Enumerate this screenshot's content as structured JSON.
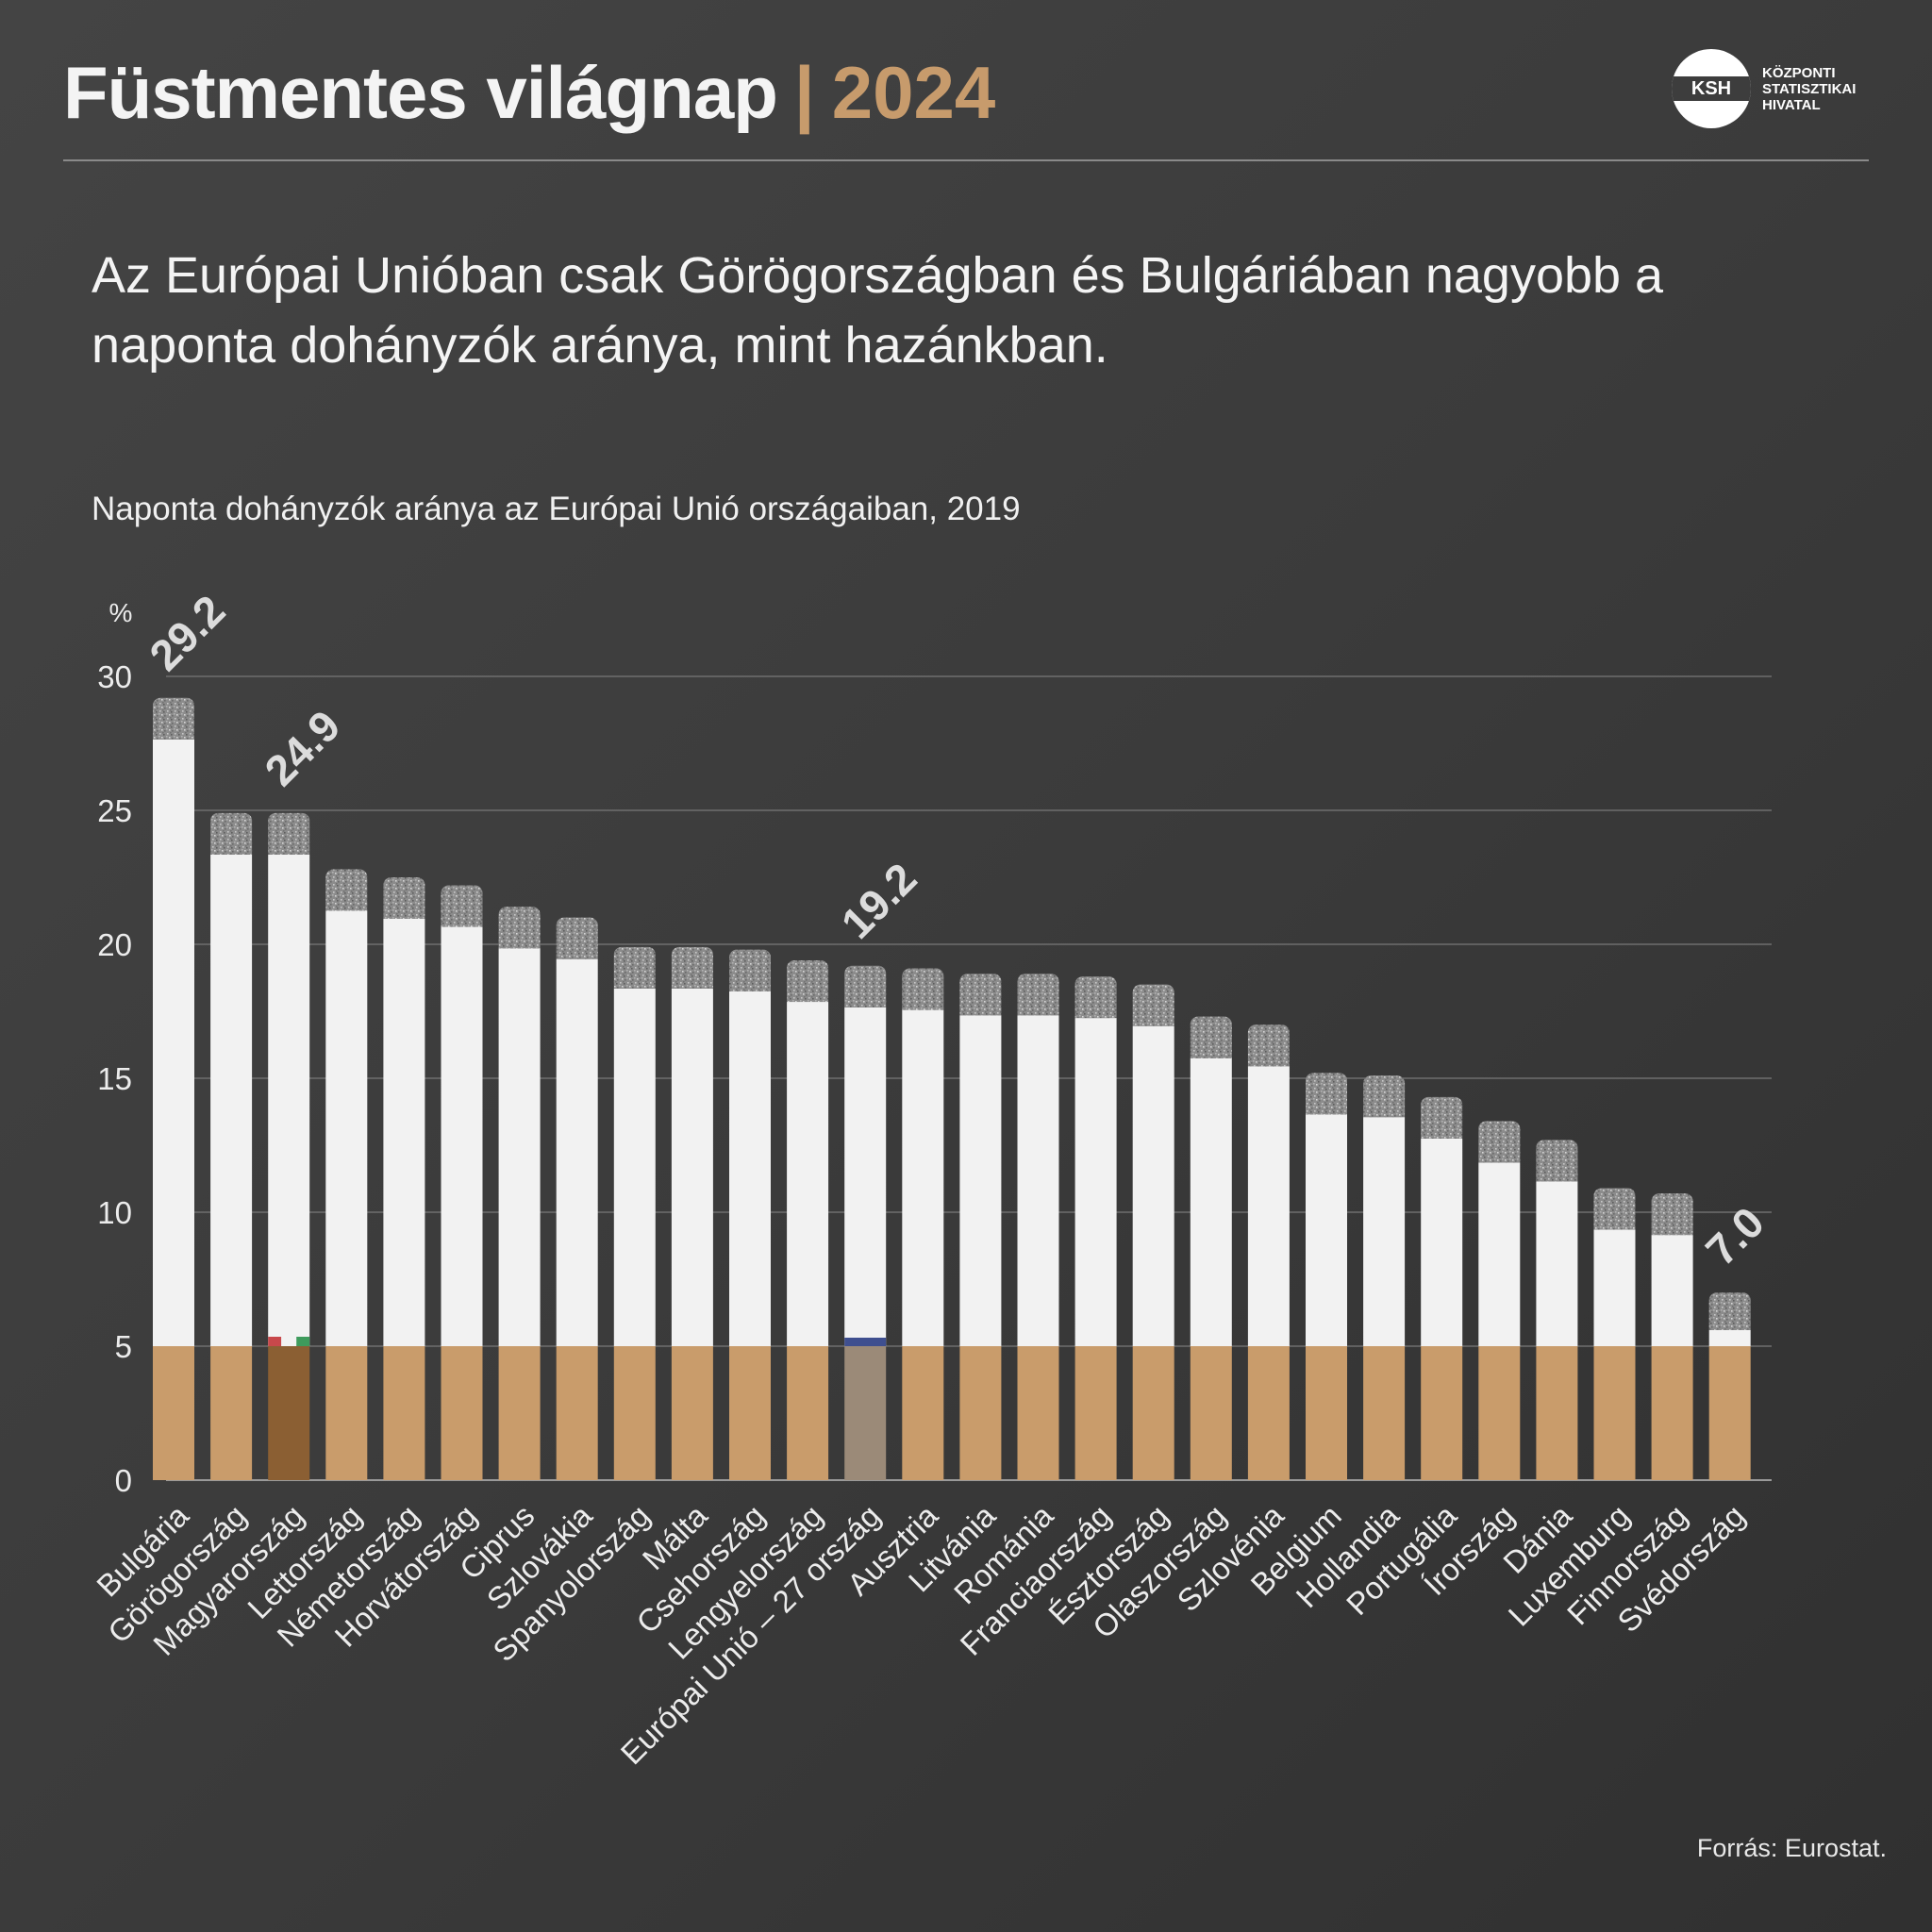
{
  "header": {
    "title": "Füstmentes világnap",
    "separator": "|",
    "year": "2024"
  },
  "logo": {
    "abbr": "KSH",
    "lines": [
      "KÖZPONTI",
      "STATISZTIKAI",
      "HIVATAL"
    ]
  },
  "headline": "Az Európai Unióban csak Görögországban és Bulgáriában nagyobb a naponta dohányzók aránya, mint hazánkban.",
  "source": "Forrás: Eurostat.",
  "colors": {
    "background": "#3c3c3c",
    "accent": "#c79b6c",
    "bar_white": "#f2f2f2",
    "filter": "#c99c6b",
    "filter_hungary": "#8b5f33",
    "filter_eu": "#9b8a78",
    "ash": "#8c8c8c",
    "hu_red": "#c8484b",
    "hu_green": "#3e9b5c",
    "eu_blue": "#3f4f8f"
  },
  "chart_data": {
    "type": "bar",
    "title": "Naponta dohányzók aránya az Európai Unió országaiban, 2019",
    "ylabel": "%",
    "ylim": [
      0,
      30
    ],
    "yticks": [
      0,
      5,
      10,
      15,
      20,
      25,
      30
    ],
    "grid": true,
    "categories": [
      "Bulgária",
      "Görögország",
      "Magyarország",
      "Lettország",
      "Németország",
      "Horvátország",
      "Ciprus",
      "Szlovákia",
      "Spanyolország",
      "Málta",
      "Csehország",
      "Lengyelország",
      "Európai Unió – 27 ország",
      "Ausztria",
      "Litvánia",
      "Románia",
      "Franciaország",
      "Észtország",
      "Olaszország",
      "Szlovénia",
      "Belgium",
      "Hollandia",
      "Portugália",
      "Írország",
      "Dánia",
      "Luxemburg",
      "Finnország",
      "Svédország"
    ],
    "values": [
      29.2,
      24.9,
      24.9,
      22.8,
      22.5,
      22.2,
      21.4,
      21.0,
      19.9,
      19.9,
      19.8,
      19.4,
      19.2,
      19.1,
      18.9,
      18.9,
      18.8,
      18.5,
      17.3,
      17.0,
      15.2,
      15.1,
      14.3,
      13.4,
      12.7,
      10.9,
      10.7,
      7.0
    ],
    "data_labels": [
      {
        "category": "Bulgária",
        "text": "29.2"
      },
      {
        "category": "Magyarország",
        "text": "24.9"
      },
      {
        "category": "Európai Unió – 27 ország",
        "text": "19.2"
      },
      {
        "category": "Svédország",
        "text": "7.0"
      }
    ],
    "highlight": {
      "hungary": "Magyarország",
      "eu": "Európai Unió – 27 ország"
    }
  }
}
